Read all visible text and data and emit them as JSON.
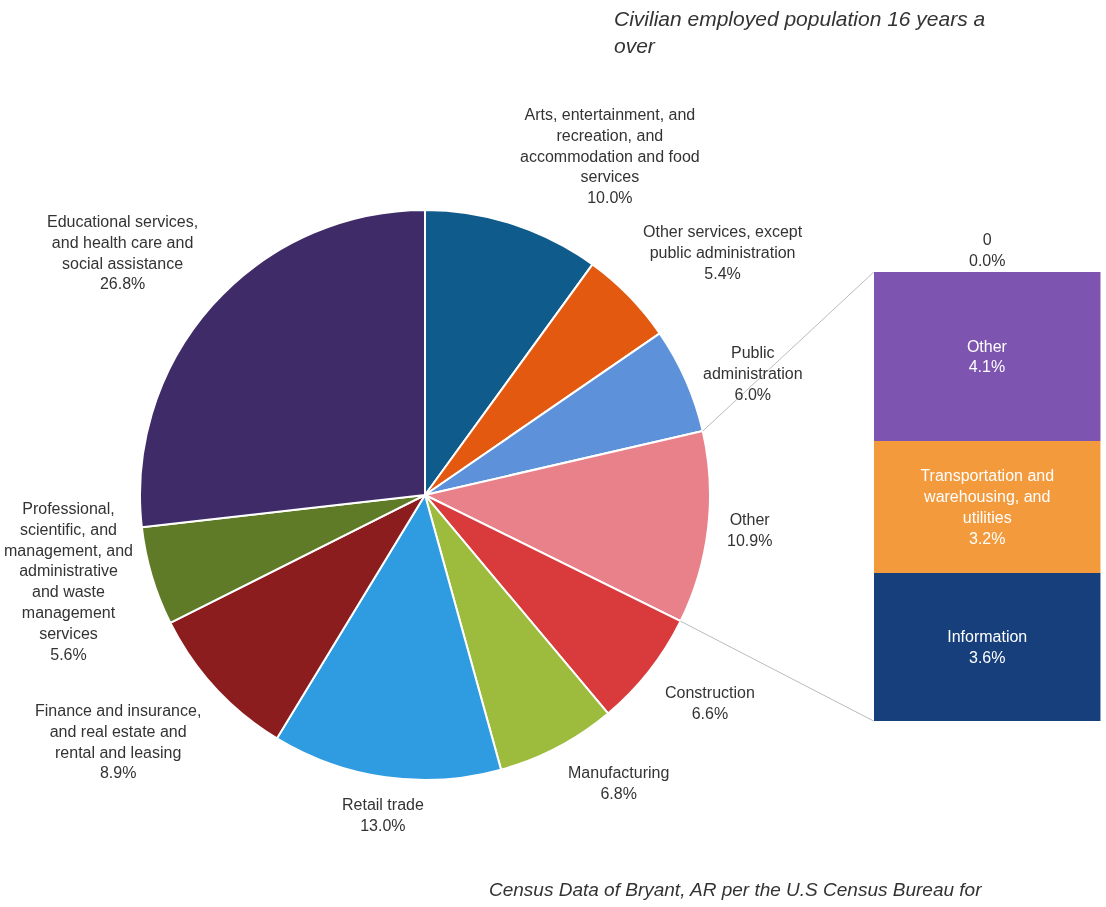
{
  "chart_data": [
    {
      "type": "pie",
      "subtitle": "Civilian employed population 16 years a over",
      "annotations": [
        "Census Data of Bryant, AR per the U.S Census Bureau for"
      ],
      "categories": [
        "Arts, entertainment, and recreation, and accommodation and food services",
        "Other services, except public administration",
        "Public administration",
        "Other",
        "Construction",
        "Manufacturing",
        "Retail trade",
        "Finance and insurance, and real estate and rental and leasing",
        "Professional, scientific, and management, and administrative and waste management services",
        "Educational services, and health care and social assistance"
      ],
      "values": [
        10.0,
        5.4,
        6.0,
        10.9,
        6.6,
        6.8,
        13.0,
        8.9,
        5.6,
        26.8
      ],
      "value_labels": [
        "10.0%",
        "5.4%",
        "6.0%",
        "10.9%",
        "6.6%",
        "6.8%",
        "13.0%",
        "8.9%",
        "5.6%",
        "26.8%"
      ],
      "colors": [
        "#0f5b8c",
        "#e2590f",
        "#5d92db",
        "#e9818b",
        "#d93b3c",
        "#9dbb3c",
        "#2f9be0",
        "#8c1d1f",
        "#5f7b27",
        "#3e2b68"
      ]
    },
    {
      "type": "bar",
      "stacked": true,
      "categories": [
        null
      ],
      "series": [
        {
          "name": "Information",
          "color": "#163f7c",
          "values": [
            3.6
          ],
          "value_labels": [
            "3.6%"
          ]
        },
        {
          "name": "Transportation and warehousing, and utilities",
          "color": "#f39a3c",
          "values": [
            3.2
          ],
          "value_labels": [
            "3.2%"
          ]
        },
        {
          "name": "Other",
          "color": "#7d55b0",
          "values": [
            4.1
          ],
          "value_labels": [
            "4.1%"
          ]
        },
        {
          "name": "0",
          "values": [
            0.0
          ],
          "value_labels": [
            "0.0%"
          ]
        }
      ]
    }
  ]
}
